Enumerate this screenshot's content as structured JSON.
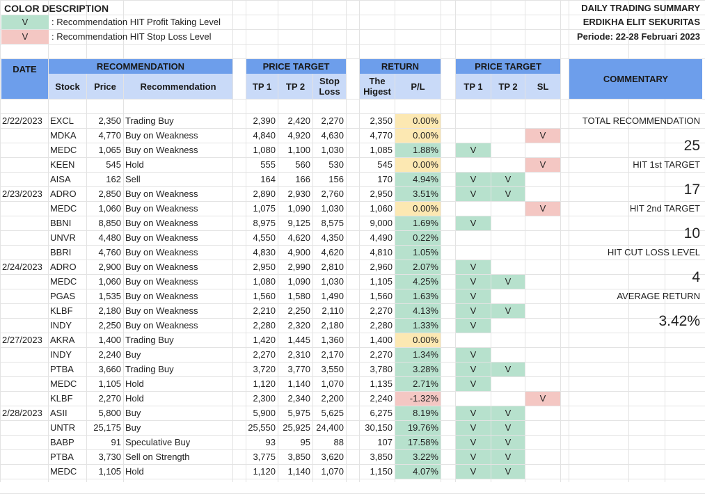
{
  "legend": {
    "title": "COLOR DESCRIPTION",
    "items": [
      {
        "mark": "V",
        "text": ": Recommendation HIT Profit Taking Level",
        "color": "#b7e1cd"
      },
      {
        "mark": "V",
        "text": ": Recommendation HIT Stop Loss Level",
        "color": "#f4c7c3"
      }
    ]
  },
  "summary_header": {
    "title": "DAILY TRADING SUMMARY",
    "company": "ERDIKHA ELIT SEKURITAS",
    "period": "Periode: 22-28  Februari 2023"
  },
  "headers": {
    "date": "DATE",
    "recommendation": "RECOMMENDATION",
    "stock": "Stock",
    "price": "Price",
    "recommendation_col": "Recommendation",
    "price_target": "PRICE TARGET",
    "tp1": "TP 1",
    "tp2": "TP 2",
    "stop_loss": "Stop Loss",
    "return": "RETURN",
    "the_highest": "The Higest",
    "pl": "P/L",
    "price_target_hit": "PRICE TARGET",
    "hit_tp1": "TP 1",
    "hit_tp2": "TP 2",
    "hit_sl": "SL",
    "commentary": "COMMENTARY"
  },
  "rows": [
    {
      "date": "2/22/2023",
      "stock": "EXCL",
      "price": "2,350",
      "rec": "Trading Buy",
      "tp1": "2,390",
      "tp2": "2,420",
      "sl": "2,270",
      "high": "2,350",
      "pl": "0.00%",
      "pl_color": "yellow",
      "h1": "",
      "h2": "",
      "hs": ""
    },
    {
      "date": "",
      "stock": "MDKA",
      "price": "4,770",
      "rec": "Buy on Weakness",
      "tp1": "4,840",
      "tp2": "4,920",
      "sl": "4,630",
      "high": "4,770",
      "pl": "0.00%",
      "pl_color": "yellow",
      "h1": "",
      "h2": "",
      "hs": "V"
    },
    {
      "date": "",
      "stock": "MEDC",
      "price": "1,065",
      "rec": "Buy on Weakness",
      "tp1": "1,080",
      "tp2": "1,100",
      "sl": "1,030",
      "high": "1,085",
      "pl": "1.88%",
      "pl_color": "green",
      "h1": "V",
      "h2": "",
      "hs": ""
    },
    {
      "date": "",
      "stock": "KEEN",
      "price": "545",
      "rec": "Hold",
      "tp1": "555",
      "tp2": "560",
      "sl": "530",
      "high": "545",
      "pl": "0.00%",
      "pl_color": "yellow",
      "h1": "",
      "h2": "",
      "hs": "V"
    },
    {
      "date": "",
      "stock": "AISA",
      "price": "162",
      "rec": "Sell",
      "tp1": "164",
      "tp2": "166",
      "sl": "156",
      "high": "170",
      "pl": "4.94%",
      "pl_color": "green",
      "h1": "V",
      "h2": "V",
      "hs": ""
    },
    {
      "date": "2/23/2023",
      "stock": "ADRO",
      "price": "2,850",
      "rec": "Buy on Weakness",
      "tp1": "2,890",
      "tp2": "2,930",
      "sl": "2,760",
      "high": "2,950",
      "pl": "3.51%",
      "pl_color": "green",
      "h1": "V",
      "h2": "V",
      "hs": ""
    },
    {
      "date": "",
      "stock": "MEDC",
      "price": "1,060",
      "rec": "Buy on Weakness",
      "tp1": "1,075",
      "tp2": "1,090",
      "sl": "1,030",
      "high": "1,060",
      "pl": "0.00%",
      "pl_color": "yellow",
      "h1": "",
      "h2": "",
      "hs": "V"
    },
    {
      "date": "",
      "stock": "BBNI",
      "price": "8,850",
      "rec": "Buy on Weakness",
      "tp1": "8,975",
      "tp2": "9,125",
      "sl": "8,575",
      "high": "9,000",
      "pl": "1.69%",
      "pl_color": "green",
      "h1": "V",
      "h2": "",
      "hs": ""
    },
    {
      "date": "",
      "stock": "UNVR",
      "price": "4,480",
      "rec": "Buy on Weakness",
      "tp1": "4,550",
      "tp2": "4,620",
      "sl": "4,350",
      "high": "4,490",
      "pl": "0.22%",
      "pl_color": "green",
      "h1": "",
      "h2": "",
      "hs": ""
    },
    {
      "date": "",
      "stock": "BBRI",
      "price": "4,760",
      "rec": "Buy on Weakness",
      "tp1": "4,830",
      "tp2": "4,900",
      "sl": "4,620",
      "high": "4,810",
      "pl": "1.05%",
      "pl_color": "green",
      "h1": "",
      "h2": "",
      "hs": ""
    },
    {
      "date": "2/24/2023",
      "stock": "ADRO",
      "price": "2,900",
      "rec": "Buy on Weakness",
      "tp1": "2,950",
      "tp2": "2,990",
      "sl": "2,810",
      "high": "2,960",
      "pl": "2.07%",
      "pl_color": "green",
      "h1": "V",
      "h2": "",
      "hs": ""
    },
    {
      "date": "",
      "stock": "MEDC",
      "price": "1,060",
      "rec": "Buy on Weakness",
      "tp1": "1,080",
      "tp2": "1,090",
      "sl": "1,030",
      "high": "1,105",
      "pl": "4.25%",
      "pl_color": "green",
      "h1": "V",
      "h2": "V",
      "hs": ""
    },
    {
      "date": "",
      "stock": "PGAS",
      "price": "1,535",
      "rec": "Buy on Weakness",
      "tp1": "1,560",
      "tp2": "1,580",
      "sl": "1,490",
      "high": "1,560",
      "pl": "1.63%",
      "pl_color": "green",
      "h1": "V",
      "h2": "",
      "hs": ""
    },
    {
      "date": "",
      "stock": "KLBF",
      "price": "2,180",
      "rec": "Buy on Weakness",
      "tp1": "2,210",
      "tp2": "2,250",
      "sl": "2,110",
      "high": "2,270",
      "pl": "4.13%",
      "pl_color": "green",
      "h1": "V",
      "h2": "V",
      "hs": ""
    },
    {
      "date": "",
      "stock": "INDY",
      "price": "2,250",
      "rec": "Buy on Weakness",
      "tp1": "2,280",
      "tp2": "2,320",
      "sl": "2,180",
      "high": "2,280",
      "pl": "1.33%",
      "pl_color": "green",
      "h1": "V",
      "h2": "",
      "hs": ""
    },
    {
      "date": "2/27/2023",
      "stock": "AKRA",
      "price": "1,400",
      "rec": "Trading Buy",
      "tp1": "1,420",
      "tp2": "1,445",
      "sl": "1,360",
      "high": "1,400",
      "pl": "0.00%",
      "pl_color": "yellow",
      "h1": "",
      "h2": "",
      "hs": ""
    },
    {
      "date": "",
      "stock": "INDY",
      "price": "2,240",
      "rec": "Buy",
      "tp1": "2,270",
      "tp2": "2,310",
      "sl": "2,170",
      "high": "2,270",
      "pl": "1.34%",
      "pl_color": "green",
      "h1": "V",
      "h2": "",
      "hs": ""
    },
    {
      "date": "",
      "stock": "PTBA",
      "price": "3,660",
      "rec": "Trading Buy",
      "tp1": "3,720",
      "tp2": "3,770",
      "sl": "3,550",
      "high": "3,780",
      "pl": "3.28%",
      "pl_color": "green",
      "h1": "V",
      "h2": "V",
      "hs": ""
    },
    {
      "date": "",
      "stock": "MEDC",
      "price": "1,105",
      "rec": "Hold",
      "tp1": "1,120",
      "tp2": "1,140",
      "sl": "1,070",
      "high": "1,135",
      "pl": "2.71%",
      "pl_color": "green",
      "h1": "V",
      "h2": "",
      "hs": ""
    },
    {
      "date": "",
      "stock": "KLBF",
      "price": "2,270",
      "rec": "Hold",
      "tp1": "2,300",
      "tp2": "2,340",
      "sl": "2,200",
      "high": "2,240",
      "pl": "-1.32%",
      "pl_color": "red",
      "h1": "",
      "h2": "",
      "hs": "V"
    },
    {
      "date": "2/28/2023",
      "stock": "ASII",
      "price": "5,800",
      "rec": "Buy",
      "tp1": "5,900",
      "tp2": "5,975",
      "sl": "5,625",
      "high": "6,275",
      "pl": "8.19%",
      "pl_color": "green",
      "h1": "V",
      "h2": "V",
      "hs": ""
    },
    {
      "date": "",
      "stock": "UNTR",
      "price": "25,175",
      "rec": "Buy",
      "tp1": "25,550",
      "tp2": "25,925",
      "sl": "24,400",
      "high": "30,150",
      "pl": "19.76%",
      "pl_color": "green",
      "h1": "V",
      "h2": "V",
      "hs": ""
    },
    {
      "date": "",
      "stock": "BABP",
      "price": "91",
      "rec": "Speculative Buy",
      "tp1": "93",
      "tp2": "95",
      "sl": "88",
      "high": "107",
      "pl": "17.58%",
      "pl_color": "green",
      "h1": "V",
      "h2": "V",
      "hs": ""
    },
    {
      "date": "",
      "stock": "PTBA",
      "price": "3,730",
      "rec": "Sell on Strength",
      "tp1": "3,775",
      "tp2": "3,850",
      "sl": "3,620",
      "high": "3,850",
      "pl": "3.22%",
      "pl_color": "green",
      "h1": "V",
      "h2": "V",
      "hs": ""
    },
    {
      "date": "",
      "stock": "MEDC",
      "price": "1,105",
      "rec": "Hold",
      "tp1": "1,120",
      "tp2": "1,140",
      "sl": "1,070",
      "high": "1,150",
      "pl": "4.07%",
      "pl_color": "green",
      "h1": "V",
      "h2": "V",
      "hs": ""
    }
  ],
  "commentary": {
    "total_label": "TOTAL RECOMMENDATION",
    "total_value": "25",
    "hit1_label": "HIT 1st TARGET",
    "hit1_value": "17",
    "hit2_label": "HIT 2nd TARGET",
    "hit2_value": "10",
    "cutloss_label": "HIT CUT LOSS LEVEL",
    "cutloss_value": "4",
    "avg_label": "AVERAGE RETURN",
    "avg_value": "3.42%"
  },
  "colors": {
    "header_blue": "#6d9eeb",
    "subheader_blue": "#c9daf8",
    "hit_green": "#b7e1cd",
    "neutral_yellow": "#fce8b2",
    "stoploss_red": "#f4c7c3"
  }
}
